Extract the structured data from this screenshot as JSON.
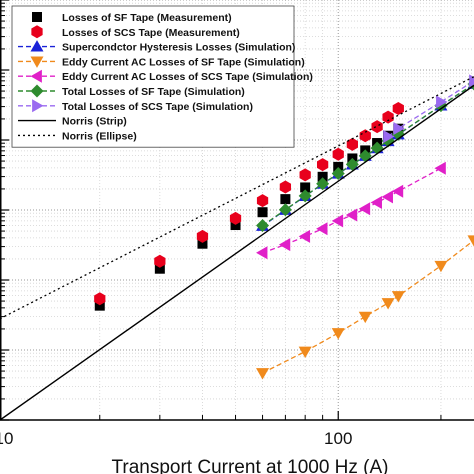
{
  "chart_data": {
    "type": "scatter",
    "title": "",
    "xlabel": "Transport Current at 1000 Hz (A)",
    "ylabel": "",
    "x_scale": "log",
    "y_scale": "log",
    "xlim": [
      10.2,
      250
    ],
    "ylim": [
      1e-07,
      0.1
    ],
    "x_tick_labels": [
      {
        "value": 10,
        "label": "10"
      },
      {
        "value": 100,
        "label": "100"
      }
    ],
    "grid": true,
    "legend_position": "top-left",
    "series": [
      {
        "name": "Losses of SF Tape (Measurement)",
        "marker": "square",
        "color": "#000000",
        "line": "none",
        "x": [
          20,
          30,
          40,
          50,
          60,
          70,
          80,
          90,
          100,
          110,
          120,
          130,
          140,
          150
        ],
        "y": [
          4.3e-06,
          1.45e-05,
          3.3e-05,
          6.1e-05,
          9.3e-05,
          0.000143,
          0.00021,
          0.000298,
          0.000413,
          0.000545,
          0.00071,
          0.000905,
          0.00115,
          0.00145
        ]
      },
      {
        "name": "Losses of SCS Tape (Measurement)",
        "marker": "hexagon",
        "color": "#e8001c",
        "line": "none",
        "x": [
          20,
          30,
          40,
          50,
          60,
          70,
          80,
          90,
          100,
          110,
          120,
          130,
          140,
          150
        ],
        "y": [
          5.4e-06,
          1.85e-05,
          4.2e-05,
          7.6e-05,
          0.000136,
          0.000213,
          0.000318,
          0.000445,
          0.000625,
          0.000865,
          0.00115,
          0.00155,
          0.00212,
          0.00282
        ]
      },
      {
        "name": "Supercondctor Hysteresis Losses (Simulation)",
        "marker": "triangle-up",
        "color": "#1a22d8",
        "line": "dashed",
        "x": [
          60,
          70,
          80,
          90,
          100,
          110,
          120,
          130,
          140,
          150,
          200,
          250
        ],
        "y": [
          5.9e-05,
          0.0001,
          0.000158,
          0.000236,
          0.00033,
          0.000445,
          0.00059,
          0.00076,
          0.00096,
          0.0012,
          0.0031,
          0.0063
        ]
      },
      {
        "name": "Eddy Current AC Losses of SF Tape (Simulation)",
        "marker": "triangle-down",
        "color": "#f08a1c",
        "line": "dashed",
        "x": [
          60,
          80,
          100,
          120,
          140,
          150,
          200,
          250
        ],
        "y": [
          4.7e-07,
          9.5e-07,
          1.75e-06,
          3e-06,
          4.7e-06,
          5.9e-06,
          1.6e-05,
          3.7e-05
        ]
      },
      {
        "name": "Eddy Current AC Losses of SCS Tape (Simulation)",
        "marker": "triangle-left",
        "color": "#e020c8",
        "line": "dashed",
        "x": [
          60,
          70,
          80,
          90,
          100,
          110,
          120,
          130,
          140,
          150,
          200
        ],
        "y": [
          2.45e-05,
          3.2e-05,
          4.2e-05,
          5.4e-05,
          7e-05,
          8.5e-05,
          0.000104,
          0.000128,
          0.000154,
          0.000185,
          0.000395
        ]
      },
      {
        "name": "Total Losses of SF Tape (Simulation)",
        "marker": "diamond",
        "color": "#2e8b2e",
        "line": "dashed",
        "x": [
          60,
          70,
          80,
          90,
          100,
          110,
          120,
          130,
          140,
          150,
          200,
          250
        ],
        "y": [
          6e-05,
          0.000101,
          0.000159,
          0.000237,
          0.000332,
          0.000448,
          0.000594,
          0.000766,
          0.00097,
          0.00121,
          0.0031,
          0.0063
        ]
      },
      {
        "name": "Total Losses of SCS Tape (Simulation)",
        "marker": "triangle-right",
        "color": "#9a6af0",
        "line": "dashed",
        "x": [
          140,
          150,
          200,
          250
        ],
        "y": [
          0.00112,
          0.00146,
          0.0035,
          0.007
        ]
      },
      {
        "name": "Norris (Strip)",
        "marker": "none",
        "color": "#000000",
        "line": "solid",
        "x": [
          10.2,
          250
        ],
        "y": [
          1e-07,
          0.00603
        ]
      },
      {
        "name": "Norris (Ellipse)",
        "marker": "none",
        "color": "#000000",
        "line": "dotted",
        "x": [
          10.2,
          250
        ],
        "y": [
          2.8e-06,
          0.00805
        ]
      }
    ]
  }
}
